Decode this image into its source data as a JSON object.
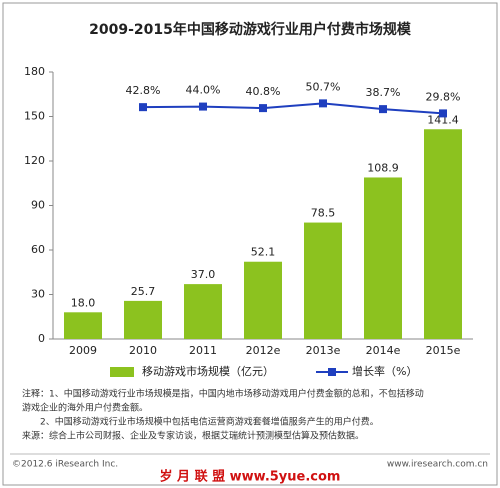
{
  "chart_data": {
    "type": "bar",
    "title": "2009-2015年中国移动游戏行业用户付费市场规模",
    "categories": [
      "2009",
      "2010",
      "2011",
      "2012e",
      "2013e",
      "2014e",
      "2015e"
    ],
    "series": [
      {
        "name": "移动游戏市场规模（亿元）",
        "type": "bar",
        "color": "#8cc21f",
        "values": [
          18.0,
          25.7,
          37.0,
          52.1,
          78.5,
          108.9,
          141.4
        ],
        "value_labels": [
          "18.0",
          "25.7",
          "37.0",
          "52.1",
          "78.5",
          "108.9",
          "141.4"
        ]
      },
      {
        "name": "增长率（%）",
        "type": "line",
        "axis": "y2",
        "color": "#1f3fbf",
        "values": [
          null,
          42.8,
          44.0,
          40.8,
          50.7,
          38.7,
          29.8
        ],
        "value_labels": [
          null,
          "42.8%",
          "44.0%",
          "40.8%",
          "50.7%",
          "38.7%",
          "29.8%"
        ]
      }
    ],
    "ylim": [
      0,
      180
    ],
    "yticks": [
      0,
      30,
      60,
      90,
      120,
      150,
      180
    ],
    "y2lim": [
      -440,
      116
    ],
    "notes": [
      "注释：1、中国移动游戏行业市场规模是指，中国内地市场移动游戏用户付费金额的总和，不包括移动",
      "游戏企业的海外用户付费金额。",
      "2、中国移动游戏行业市场规模中包括电信运营商游戏套餐增值服务产生的用户付费。",
      "来源：综合上市公司财报、企业及专家访谈，根据艾瑞统计预测模型估算及预估数据。"
    ],
    "footer_left": "©2012.6 iResearch Inc.",
    "footer_right": "www.iresearch.com.cn",
    "watermark": "岁 月 联 盟 www.5yue.com"
  }
}
